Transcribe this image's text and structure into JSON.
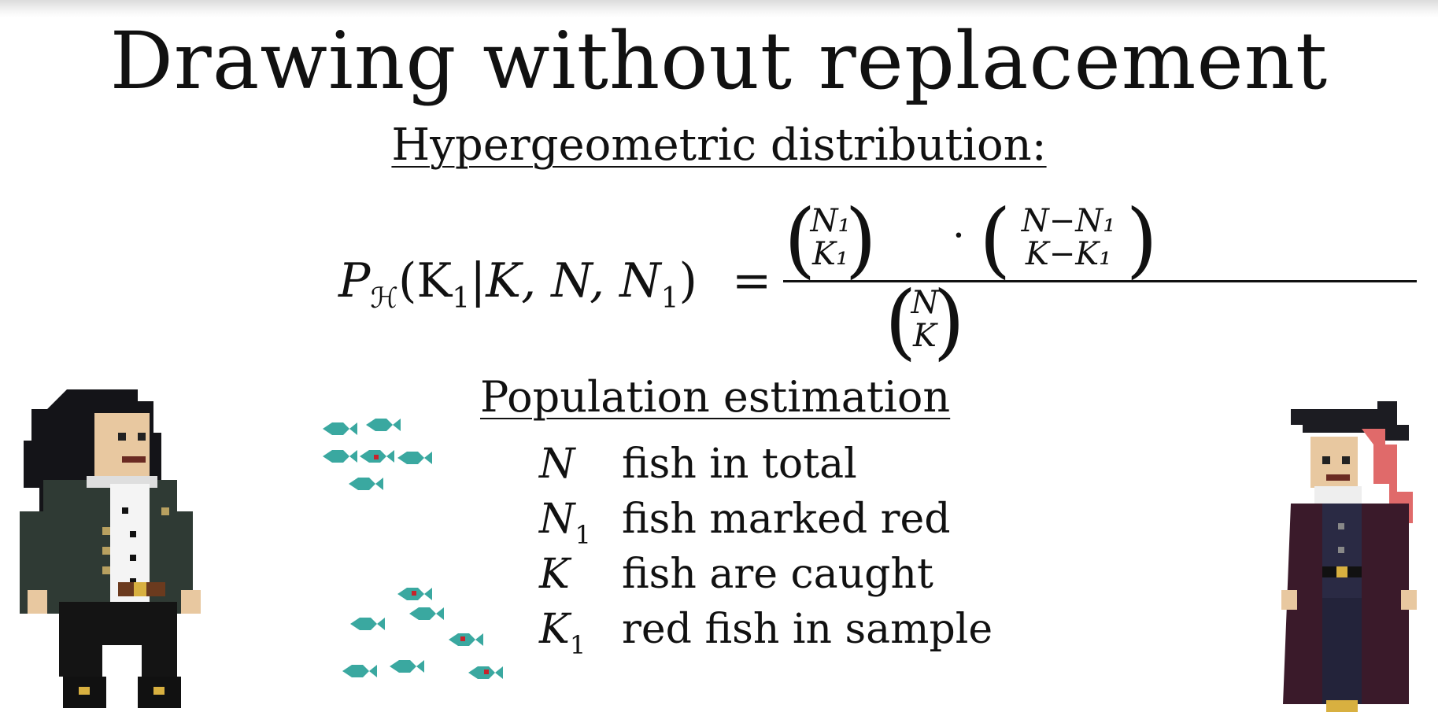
{
  "slide": {
    "title": "Drawing without replacement",
    "subtitle": "Hypergeometric distribution:",
    "formula": {
      "lhs_P": "P",
      "lhs_sub": "ℋ",
      "lhs_args": "(K",
      "lhs_args_sub": "1",
      "lhs_rest": "|K, N, N",
      "lhs_rest_sub": "1",
      "lhs_close": ")",
      "equals": "=",
      "dot": "·",
      "binom1_top": "N₁",
      "binom1_bottom": "K₁",
      "binom2_top": "N−N₁",
      "binom2_bottom": "K−K₁",
      "binom3_top": "N",
      "binom3_bottom": "K"
    },
    "section_heading": "Population estimation",
    "definitions": [
      {
        "symbol": "N",
        "sub": "",
        "text": "fish in total"
      },
      {
        "symbol": "N",
        "sub": "1",
        "text": "fish marked red"
      },
      {
        "symbol": "K",
        "sub": "",
        "text": "fish are caught"
      },
      {
        "symbol": "K",
        "sub": "1",
        "text": "red fish in sample"
      }
    ]
  },
  "colors": {
    "fish": "#3aa8a0",
    "fish_mark": "#c8232b",
    "coat_left": "#2f3a34",
    "coat_right": "#3a1a2a",
    "hat": "#1c1c22",
    "hair_right": "#e06a6a"
  },
  "icons": [
    "scientist-pixel-character",
    "fisher-pixel-character",
    "fish-icon"
  ]
}
